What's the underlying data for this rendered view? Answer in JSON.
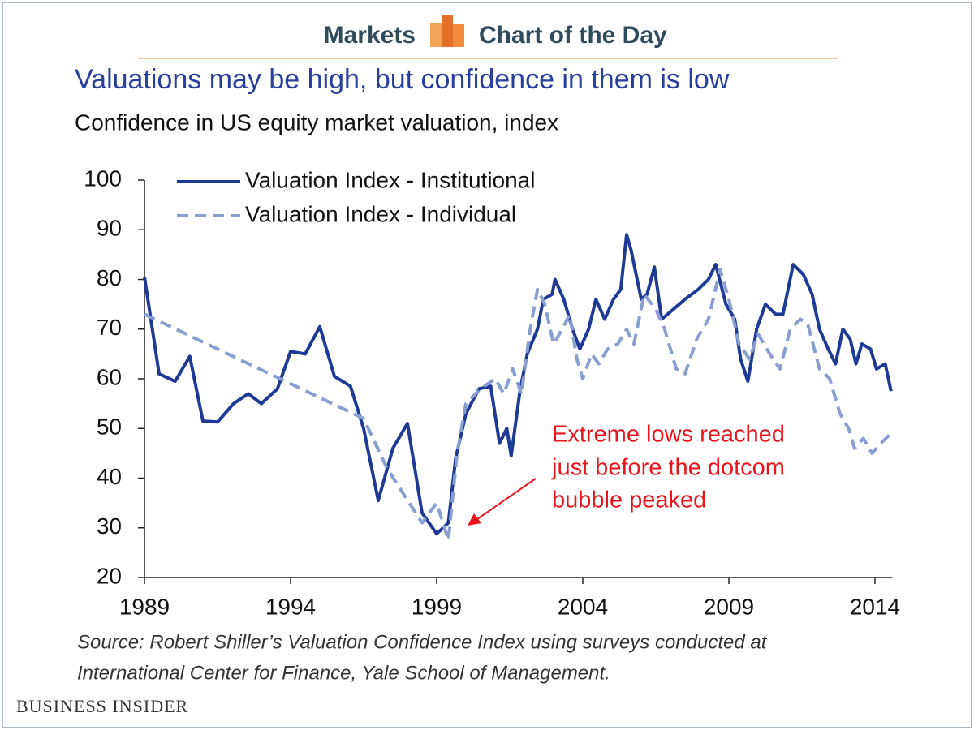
{
  "header": {
    "left": "Markets",
    "right": "Chart of the Day"
  },
  "footer": {
    "brand": "Business Insider"
  },
  "chart_data": {
    "type": "line",
    "title": "Valuations may be high, but confidence in them is low",
    "subtitle": "Confidence in US equity market valuation, index",
    "source": [
      "Source: Robert Shiller’s Valuation Confidence Index using surveys conducted at",
      "International Center for Finance, Yale School of Management."
    ],
    "annotation": [
      "Extreme lows reached",
      "just before the dotcom",
      "bubble peaked"
    ],
    "xlim": [
      1989,
      2014.6
    ],
    "xticks": [
      1989,
      1994,
      1999,
      2004,
      2009,
      2014
    ],
    "ylim": [
      20,
      100
    ],
    "yticks": [
      20,
      30,
      40,
      50,
      60,
      70,
      80,
      90,
      100
    ],
    "legend": "upper left",
    "series": [
      {
        "name": "Valuation Index - Institutional",
        "color": "#1f3a94",
        "dash": false,
        "x": [
          1989,
          1989.5,
          1990.05,
          1990.55,
          1991.0,
          1991.5,
          1992.05,
          1992.55,
          1993.0,
          1993.55,
          1994.0,
          1994.5,
          1995.0,
          1995.5,
          1996.05,
          1996.5,
          1997.0,
          1997.5,
          1998.0,
          1998.5,
          1999.0,
          1999.4,
          1999.65,
          2000.0,
          2000.45,
          2000.85,
          2001.15,
          2001.4,
          2001.55,
          2001.85,
          2002.1,
          2002.45,
          2002.65,
          2002.95,
          2003.05,
          2003.35,
          2003.65,
          2003.9,
          2004.2,
          2004.45,
          2004.75,
          2005.05,
          2005.3,
          2005.5,
          2005.65,
          2006.0,
          2006.2,
          2006.45,
          2006.7,
          2007.1,
          2007.5,
          2007.95,
          2008.3,
          2008.55,
          2008.9,
          2009.2,
          2009.4,
          2009.65,
          2009.95,
          2010.25,
          2010.6,
          2010.85,
          2011.2,
          2011.55,
          2011.85,
          2012.1,
          2012.4,
          2012.65,
          2012.9,
          2013.15,
          2013.35,
          2013.55,
          2013.85,
          2014.05,
          2014.35,
          2014.55
        ],
        "values": [
          80.5,
          61,
          59.5,
          64.5,
          51.5,
          51.3,
          55,
          57,
          55,
          58,
          65.5,
          65,
          70.5,
          60.5,
          58.5,
          50,
          35.5,
          46,
          51,
          33,
          28.8,
          31,
          44,
          53,
          58,
          58.5,
          47,
          50,
          44.5,
          57.5,
          65,
          70,
          76,
          77,
          80,
          76,
          70,
          66,
          70,
          76,
          72,
          76,
          78,
          89,
          86,
          76,
          77,
          82.5,
          72,
          74,
          76,
          78,
          80,
          83,
          75,
          72,
          64,
          59.5,
          70,
          75,
          73,
          73,
          83,
          81,
          77,
          70,
          66,
          63,
          70,
          68,
          63,
          67,
          66,
          62,
          63,
          57.5
        ]
      },
      {
        "name": "Valuation Index - Individual",
        "color": "#8a9fd1",
        "dash": true,
        "x": [
          1989,
          1996.5,
          1997.3,
          1998.5,
          1999.0,
          1999.4,
          1999.7,
          2000.0,
          2000.5,
          2001.0,
          2001.3,
          2001.6,
          2001.9,
          2002.2,
          2002.45,
          2002.7,
          2003.0,
          2003.3,
          2003.55,
          2003.8,
          2004.0,
          2004.3,
          2004.55,
          2004.85,
          2005.2,
          2005.5,
          2005.75,
          2006.1,
          2006.5,
          2006.8,
          2007.2,
          2007.5,
          2007.9,
          2008.3,
          2008.7,
          2009.0,
          2009.35,
          2009.7,
          2010.0,
          2010.4,
          2010.75,
          2011.1,
          2011.45,
          2011.7,
          2012.1,
          2012.45,
          2012.8,
          2013.1,
          2013.3,
          2013.6,
          2013.9,
          2014.2,
          2014.55
        ],
        "values": [
          73,
          52,
          42,
          31,
          35,
          27.5,
          45,
          55,
          58,
          60,
          57,
          62,
          57,
          70,
          78,
          75,
          67,
          70,
          73,
          64,
          60,
          65,
          63,
          66,
          67,
          70,
          67,
          77,
          74,
          70,
          62,
          61,
          68,
          72,
          82,
          76,
          67,
          64,
          69,
          65,
          62,
          70,
          72,
          71,
          62,
          60,
          53,
          50,
          46,
          48,
          45,
          47,
          49
        ]
      }
    ]
  }
}
